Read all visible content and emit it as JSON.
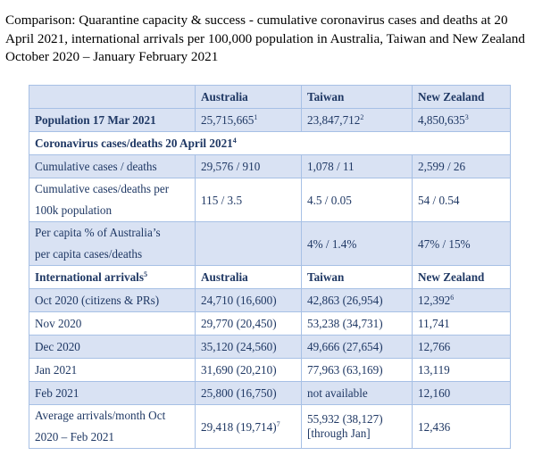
{
  "caption": "Comparison: Quarantine capacity & success - cumulative coronavirus cases and deaths at 20 April 2021, international arrivals per 100,000 population in Australia, Taiwan and New Zealand October 2020 – January February 2021",
  "table": {
    "header": {
      "blank": "",
      "australia": "Australia",
      "taiwan": "Taiwan",
      "nz": "New Zealand"
    },
    "population": {
      "label": "Population 17 Mar 2021",
      "australia": "25,715,665",
      "australia_note": "1",
      "taiwan": "23,847,712",
      "taiwan_note": "2",
      "nz": "4,850,635",
      "nz_note": "3"
    },
    "cases_section": {
      "label": "Coronavirus cases/deaths 20 April 2021",
      "note": "4"
    },
    "cumulative": {
      "label": "Cumulative cases / deaths",
      "australia": "29,576 / 910",
      "taiwan": "1,078 / 11",
      "nz": "2,599 / 26"
    },
    "per100k": {
      "label_line1": "Cumulative cases/deaths per",
      "label_line2": "100k population",
      "australia": "115  / 3.5",
      "taiwan": "4.5 / 0.05",
      "nz": "54 / 0.54"
    },
    "percapita": {
      "label_line1": "Per capita % of Australia’s",
      "label_line2": "per capita cases/deaths",
      "australia": "",
      "taiwan": "4% / 1.4%",
      "nz": "47% / 15%"
    },
    "arrivals_header": {
      "label": "International arrivals",
      "note": "5",
      "australia": "Australia",
      "taiwan": "Taiwan",
      "nz": "New Zealand"
    },
    "arrivals": [
      {
        "month": "Oct 2020 (citizens & PRs)",
        "australia": "24,710 (16,600)",
        "taiwan": "42,863 (26,954)",
        "nz": "12,392",
        "nz_note": "6"
      },
      {
        "month": "Nov 2020",
        "australia": "29,770 (20,450)",
        "taiwan": "53,238 (34,731)",
        "nz": "11,741",
        "nz_note": ""
      },
      {
        "month": "Dec 2020",
        "australia": "35,120 (24,560)",
        "taiwan": "49,666 (27,654)",
        "nz": "12,766",
        "nz_note": ""
      },
      {
        "month": "Jan 2021",
        "australia": "31,690 (20,210)",
        "taiwan": "77,963 (63,169)",
        "nz": "13,119",
        "nz_note": ""
      },
      {
        "month": "Feb 2021",
        "australia": "25,800 (16,750)",
        "taiwan": "not available",
        "nz": "12,160",
        "nz_note": ""
      }
    ],
    "average": {
      "label_line1": "Average arrivals/month Oct",
      "label_line2": "2020 – Feb  2021",
      "australia": "29,418 (19,714)",
      "australia_note": "7",
      "taiwan_line1": "55,932 (38,127)",
      "taiwan_line2": "[through Jan]",
      "nz": "12,436"
    }
  }
}
